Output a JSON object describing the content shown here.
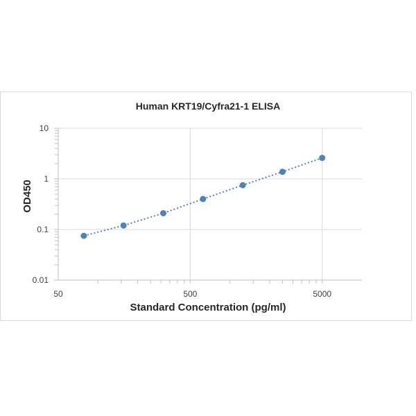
{
  "chart_data": {
    "type": "scatter",
    "title": "Human KRT19/Cyfra21-1 ELISA",
    "xlabel": "Standard Concentration (pg/ml)",
    "ylabel": "OD450",
    "x_scale": "log",
    "y_scale": "log",
    "xlim": [
      50,
      10000
    ],
    "ylim": [
      0.01,
      10
    ],
    "x_tick_values": [
      50,
      500,
      5000
    ],
    "x_tick_labels": [
      "50",
      "500",
      "5000"
    ],
    "y_tick_values": [
      0.01,
      0.1,
      1,
      10
    ],
    "y_tick_labels": [
      "0.01",
      "0.1",
      "1",
      "10"
    ],
    "grid": true,
    "legend": "none",
    "series": [
      {
        "x": [
          78.13,
          156.25,
          312.5,
          625,
          1250,
          2500,
          5000
        ],
        "y": [
          0.075,
          0.12,
          0.21,
          0.4,
          0.75,
          1.38,
          2.6
        ],
        "color": "#4f81bd",
        "trendline": "dotted"
      }
    ]
  }
}
